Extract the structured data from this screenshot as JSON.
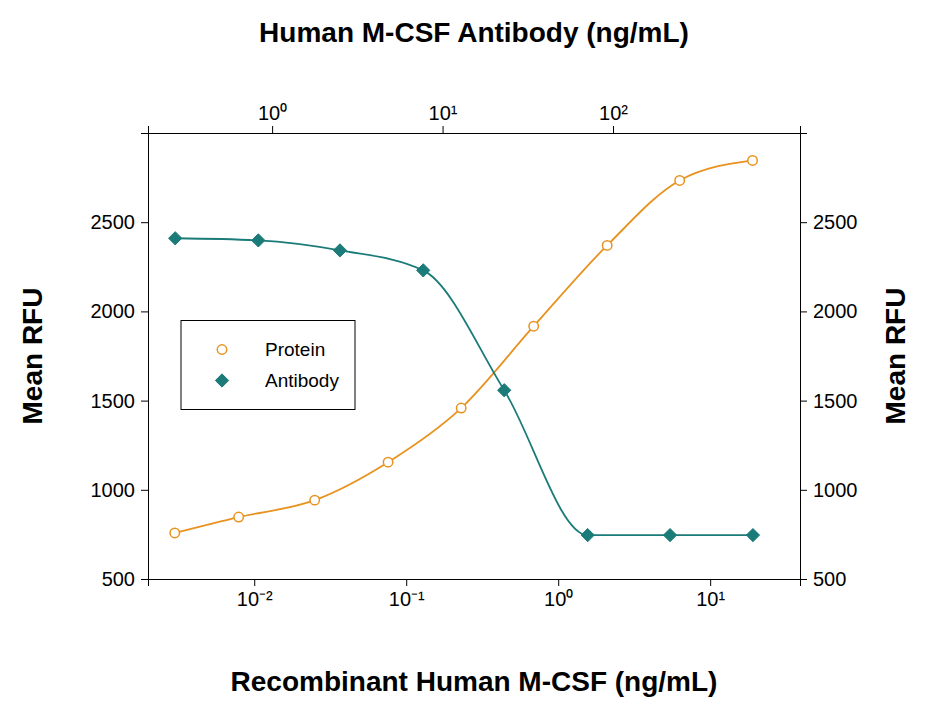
{
  "chart_data": {
    "type": "line",
    "x_label": "Recombinant Human M-CSF (ng/mL)",
    "x2_label": "Human M-CSF Antibody (ng/mL)",
    "y_label": "Mean RFU",
    "y2_label": "Mean RFU",
    "log": "x",
    "grid": false,
    "legend": "left",
    "xlim": [
      0.002,
      39
    ],
    "xticks": [
      {
        "value": 0.01,
        "label": "10⁻²"
      },
      {
        "value": 0.1,
        "label": "10⁻¹"
      },
      {
        "value": 1,
        "label": "10⁰"
      },
      {
        "value": 10,
        "label": "10¹"
      }
    ],
    "x2lim": [
      0.187,
      1250
    ],
    "x2ticks": [
      {
        "value": 1,
        "label": "10⁰"
      },
      {
        "value": 10,
        "label": "10¹"
      },
      {
        "value": 100,
        "label": "10²"
      }
    ],
    "ylim": [
      500,
      3000
    ],
    "yticks": [
      500,
      1000,
      1500,
      2000,
      2500
    ],
    "y2lim": [
      500,
      3000
    ],
    "y2ticks": [
      500,
      1000,
      1500,
      2000,
      2500
    ],
    "series": [
      {
        "name": "Protein",
        "color": "#e8921f",
        "marker": "open-circle",
        "line_style": "solid",
        "axis": "x",
        "x": [
          0.003,
          0.0079,
          0.025,
          0.076,
          0.23,
          0.69,
          2.1,
          6.3,
          19
        ],
        "values": [
          758,
          847,
          942,
          1155,
          1458,
          1917,
          2370,
          2734,
          2846
        ]
      },
      {
        "name": "Antibody",
        "color": "#1a7b78",
        "marker": "diamond",
        "line_style": "solid",
        "axis": "x2",
        "x": [
          0.27,
          0.83,
          2.5,
          7.7,
          23,
          71,
          216,
          662
        ],
        "values": [
          2410,
          2398,
          2342,
          2230,
          1558,
          746,
          746,
          746
        ]
      }
    ]
  }
}
